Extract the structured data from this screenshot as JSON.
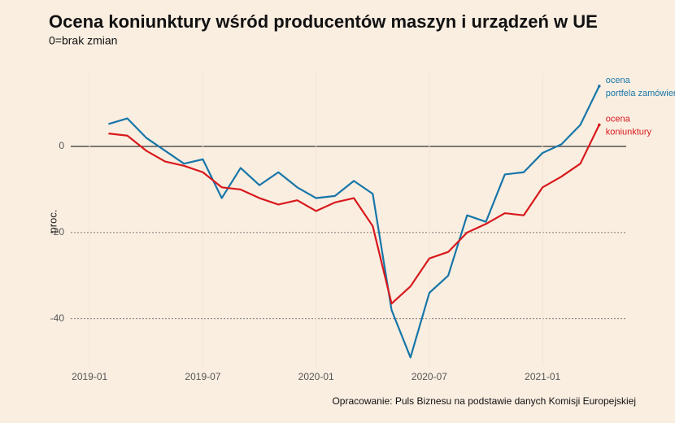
{
  "chart_data": {
    "type": "line",
    "title": "Ocena koniunktury wśród producentów maszyn i urządzeń w UE",
    "subtitle": "0=brak zmian",
    "y_label": "proc.",
    "caption": "Opracowanie: Puls Biznesu na podstawie danych Komisji Europejskiej",
    "x": [
      "2019-02",
      "2019-03",
      "2019-04",
      "2019-05",
      "2019-06",
      "2019-07",
      "2019-08",
      "2019-09",
      "2019-10",
      "2019-11",
      "2019-12",
      "2020-01",
      "2020-02",
      "2020-03",
      "2020-04",
      "2020-05",
      "2020-06",
      "2020-07",
      "2020-08",
      "2020-09",
      "2020-10",
      "2020-11",
      "2020-12",
      "2021-01",
      "2021-02",
      "2021-03",
      "2021-04"
    ],
    "series": [
      {
        "label": [
          "ocena",
          "portfela zamówień"
        ],
        "color": "#1776a8",
        "values": [
          5.2,
          6.5,
          2,
          -1,
          -4,
          -3,
          -12,
          -5,
          -9,
          -6,
          -9.5,
          -12,
          -11.5,
          -8,
          -11,
          -38,
          -49,
          -34,
          -30,
          -16,
          -17.5,
          -6.5,
          -6,
          -1.5,
          0.5,
          5,
          14
        ]
      },
      {
        "label": [
          "ocena",
          "koniunktury"
        ],
        "color": "#d7191c",
        "values": [
          3,
          2.5,
          -1,
          -3.5,
          -4.5,
          -6,
          -9.5,
          -10,
          -12,
          -13.5,
          -12.5,
          -15,
          -13,
          -12,
          -18.5,
          -36.5,
          -32.5,
          -26,
          -24.5,
          -20,
          -18,
          -15.5,
          -16,
          -9.5,
          -7,
          -4,
          5
        ]
      }
    ],
    "xlim": [
      "2018-12",
      "2021-05"
    ],
    "xticks": [
      "2019-01",
      "2019-07",
      "2020-01",
      "2020-07",
      "2021-01"
    ],
    "ylim": [
      -51,
      17
    ],
    "yticks": [
      -40,
      -20,
      0
    ]
  }
}
